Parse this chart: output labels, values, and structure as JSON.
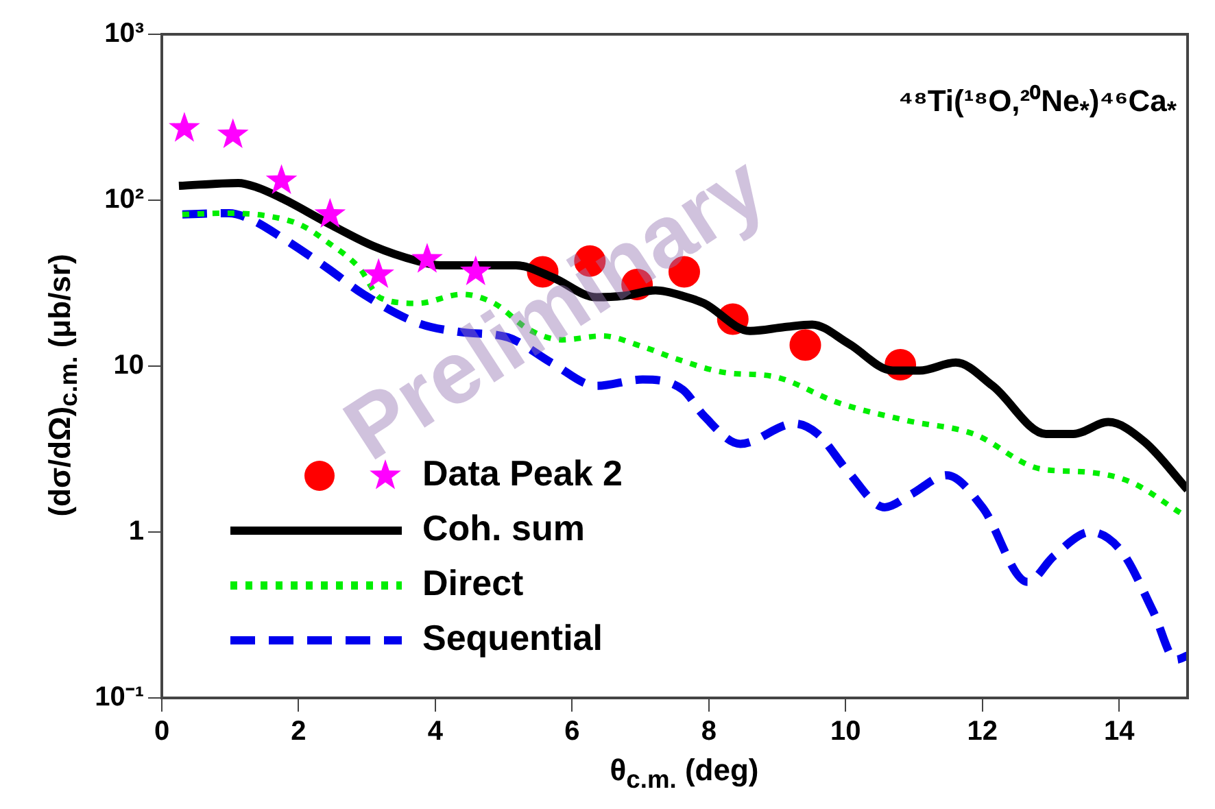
{
  "chart_data": {
    "type": "line",
    "title": "⁴⁸Ti(¹⁸O,²⁰Ne$_{*}$)⁴⁶Ca$_{*}$",
    "xlabel": "θ$_{c.m.}$ (deg)",
    "ylabel": "(dσ/dΩ)$_{c.m.}$ (μb/sr)",
    "annotations": [
      "Preliminary"
    ],
    "xlim": [
      0,
      15
    ],
    "xticks": [
      0,
      2,
      4,
      6,
      8,
      10,
      12,
      14
    ],
    "ylim": [
      0.1,
      1000
    ],
    "yticks": [
      {
        "value": 0.1,
        "label": "10⁻¹"
      },
      1,
      10,
      {
        "value": 100,
        "label": "10²"
      },
      {
        "value": 1000,
        "label": "10³"
      }
    ],
    "log": "y",
    "grid": false,
    "legend": "bottom left",
    "series": [
      {
        "name": "Data Peak 2",
        "type": "scatter",
        "marker": "star",
        "color": "#ff00ff",
        "x": [
          0.33,
          1.04,
          1.75,
          2.46,
          3.17,
          3.88,
          4.59
        ],
        "values": [
          271,
          248,
          131,
          82,
          35.6,
          44,
          37
        ]
      },
      {
        "type": "scatter",
        "marker": "circle",
        "color": "#ff0000",
        "x": [
          5.57,
          6.26,
          6.95,
          7.64,
          8.35,
          9.41,
          10.8
        ],
        "values": [
          37,
          43,
          31,
          37,
          19.2,
          13.4,
          10.2
        ]
      },
      {
        "name": "Coh. sum",
        "type": "line",
        "marker": "none",
        "line_style": "solid",
        "color": "#000000",
        "x": [
          0.25,
          1.12,
          1.38,
          1.77,
          2.42,
          3.09,
          3.74,
          4.07,
          4.72,
          5.18,
          5.71,
          6.36,
          6.75,
          7.22,
          7.68,
          7.93,
          8.6,
          9.11,
          9.51,
          10.04,
          10.69,
          11.08,
          11.61,
          12.15,
          12.93,
          13.33,
          13.84,
          14.37,
          15
        ],
        "values": [
          122,
          127,
          120,
          102,
          73,
          53,
          43,
          40.5,
          40.5,
          40.5,
          34.3,
          26,
          26.5,
          28.6,
          26,
          23.9,
          16.3,
          17.2,
          17.8,
          13.7,
          9.4,
          9.4,
          10.5,
          7.6,
          3.9,
          3.9,
          4.6,
          3.5,
          1.8
        ]
      },
      {
        "name": "Direct",
        "type": "line",
        "marker": "none",
        "line_style": "dotted",
        "color": "#00ee00",
        "x": [
          0.3,
          0.98,
          1.57,
          2.03,
          2.42,
          2.89,
          3.2,
          3.74,
          4.39,
          4.86,
          5.37,
          5.85,
          6.44,
          7.03,
          7.54,
          8.27,
          8.92,
          9.9,
          10.89,
          11.87,
          12.85,
          13.52,
          14.17,
          14.9
        ],
        "values": [
          82,
          83.5,
          80,
          71,
          56,
          39,
          25.7,
          23.9,
          27.1,
          23.9,
          16.6,
          14.4,
          15.2,
          13.1,
          11,
          9.1,
          8.7,
          6,
          4.7,
          3.9,
          2.4,
          2.3,
          2,
          1.3
        ]
      },
      {
        "name": "Sequential",
        "type": "line",
        "marker": "none",
        "line_style": "dashed",
        "color": "#0000ee",
        "x": [
          0.3,
          0.98,
          1.32,
          1.77,
          2.42,
          2.95,
          3.74,
          4.39,
          5.06,
          5.71,
          6.36,
          7.03,
          7.62,
          7.93,
          8.46,
          9.25,
          9.59,
          10.04,
          10.57,
          10.96,
          11.48,
          12,
          12.66,
          13.05,
          13.58,
          14.04,
          14.5,
          14.83,
          15
        ],
        "values": [
          82,
          83.5,
          76,
          59,
          39,
          27.1,
          18.2,
          16,
          14.9,
          10.4,
          7.6,
          8.3,
          7.2,
          5,
          3.4,
          4.5,
          3.9,
          2.3,
          1.41,
          1.69,
          2.2,
          1.41,
          0.5,
          0.72,
          1,
          0.76,
          0.33,
          0.17,
          0.18
        ]
      }
    ]
  }
}
